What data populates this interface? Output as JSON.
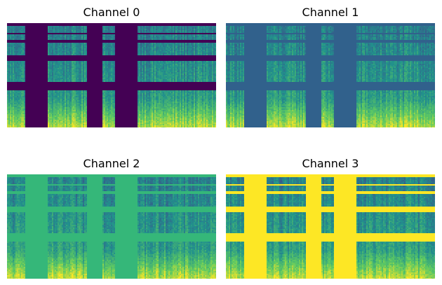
{
  "figure": {
    "panels": [
      {
        "title": "Channel 0",
        "mask_color": "#440154",
        "mask_icon": "spectrogram-masked-dark-purple"
      },
      {
        "title": "Channel 1",
        "mask_color": "#31618c",
        "mask_icon": "spectrogram-masked-blue"
      },
      {
        "title": "Channel 2",
        "mask_color": "#35b779",
        "mask_icon": "spectrogram-masked-green"
      },
      {
        "title": "Channel 3",
        "mask_color": "#fde725",
        "mask_icon": "spectrogram-masked-yellow"
      }
    ],
    "colormap": [
      "#440154",
      "#3b528b",
      "#21918c",
      "#5ec962",
      "#fde725"
    ]
  }
}
